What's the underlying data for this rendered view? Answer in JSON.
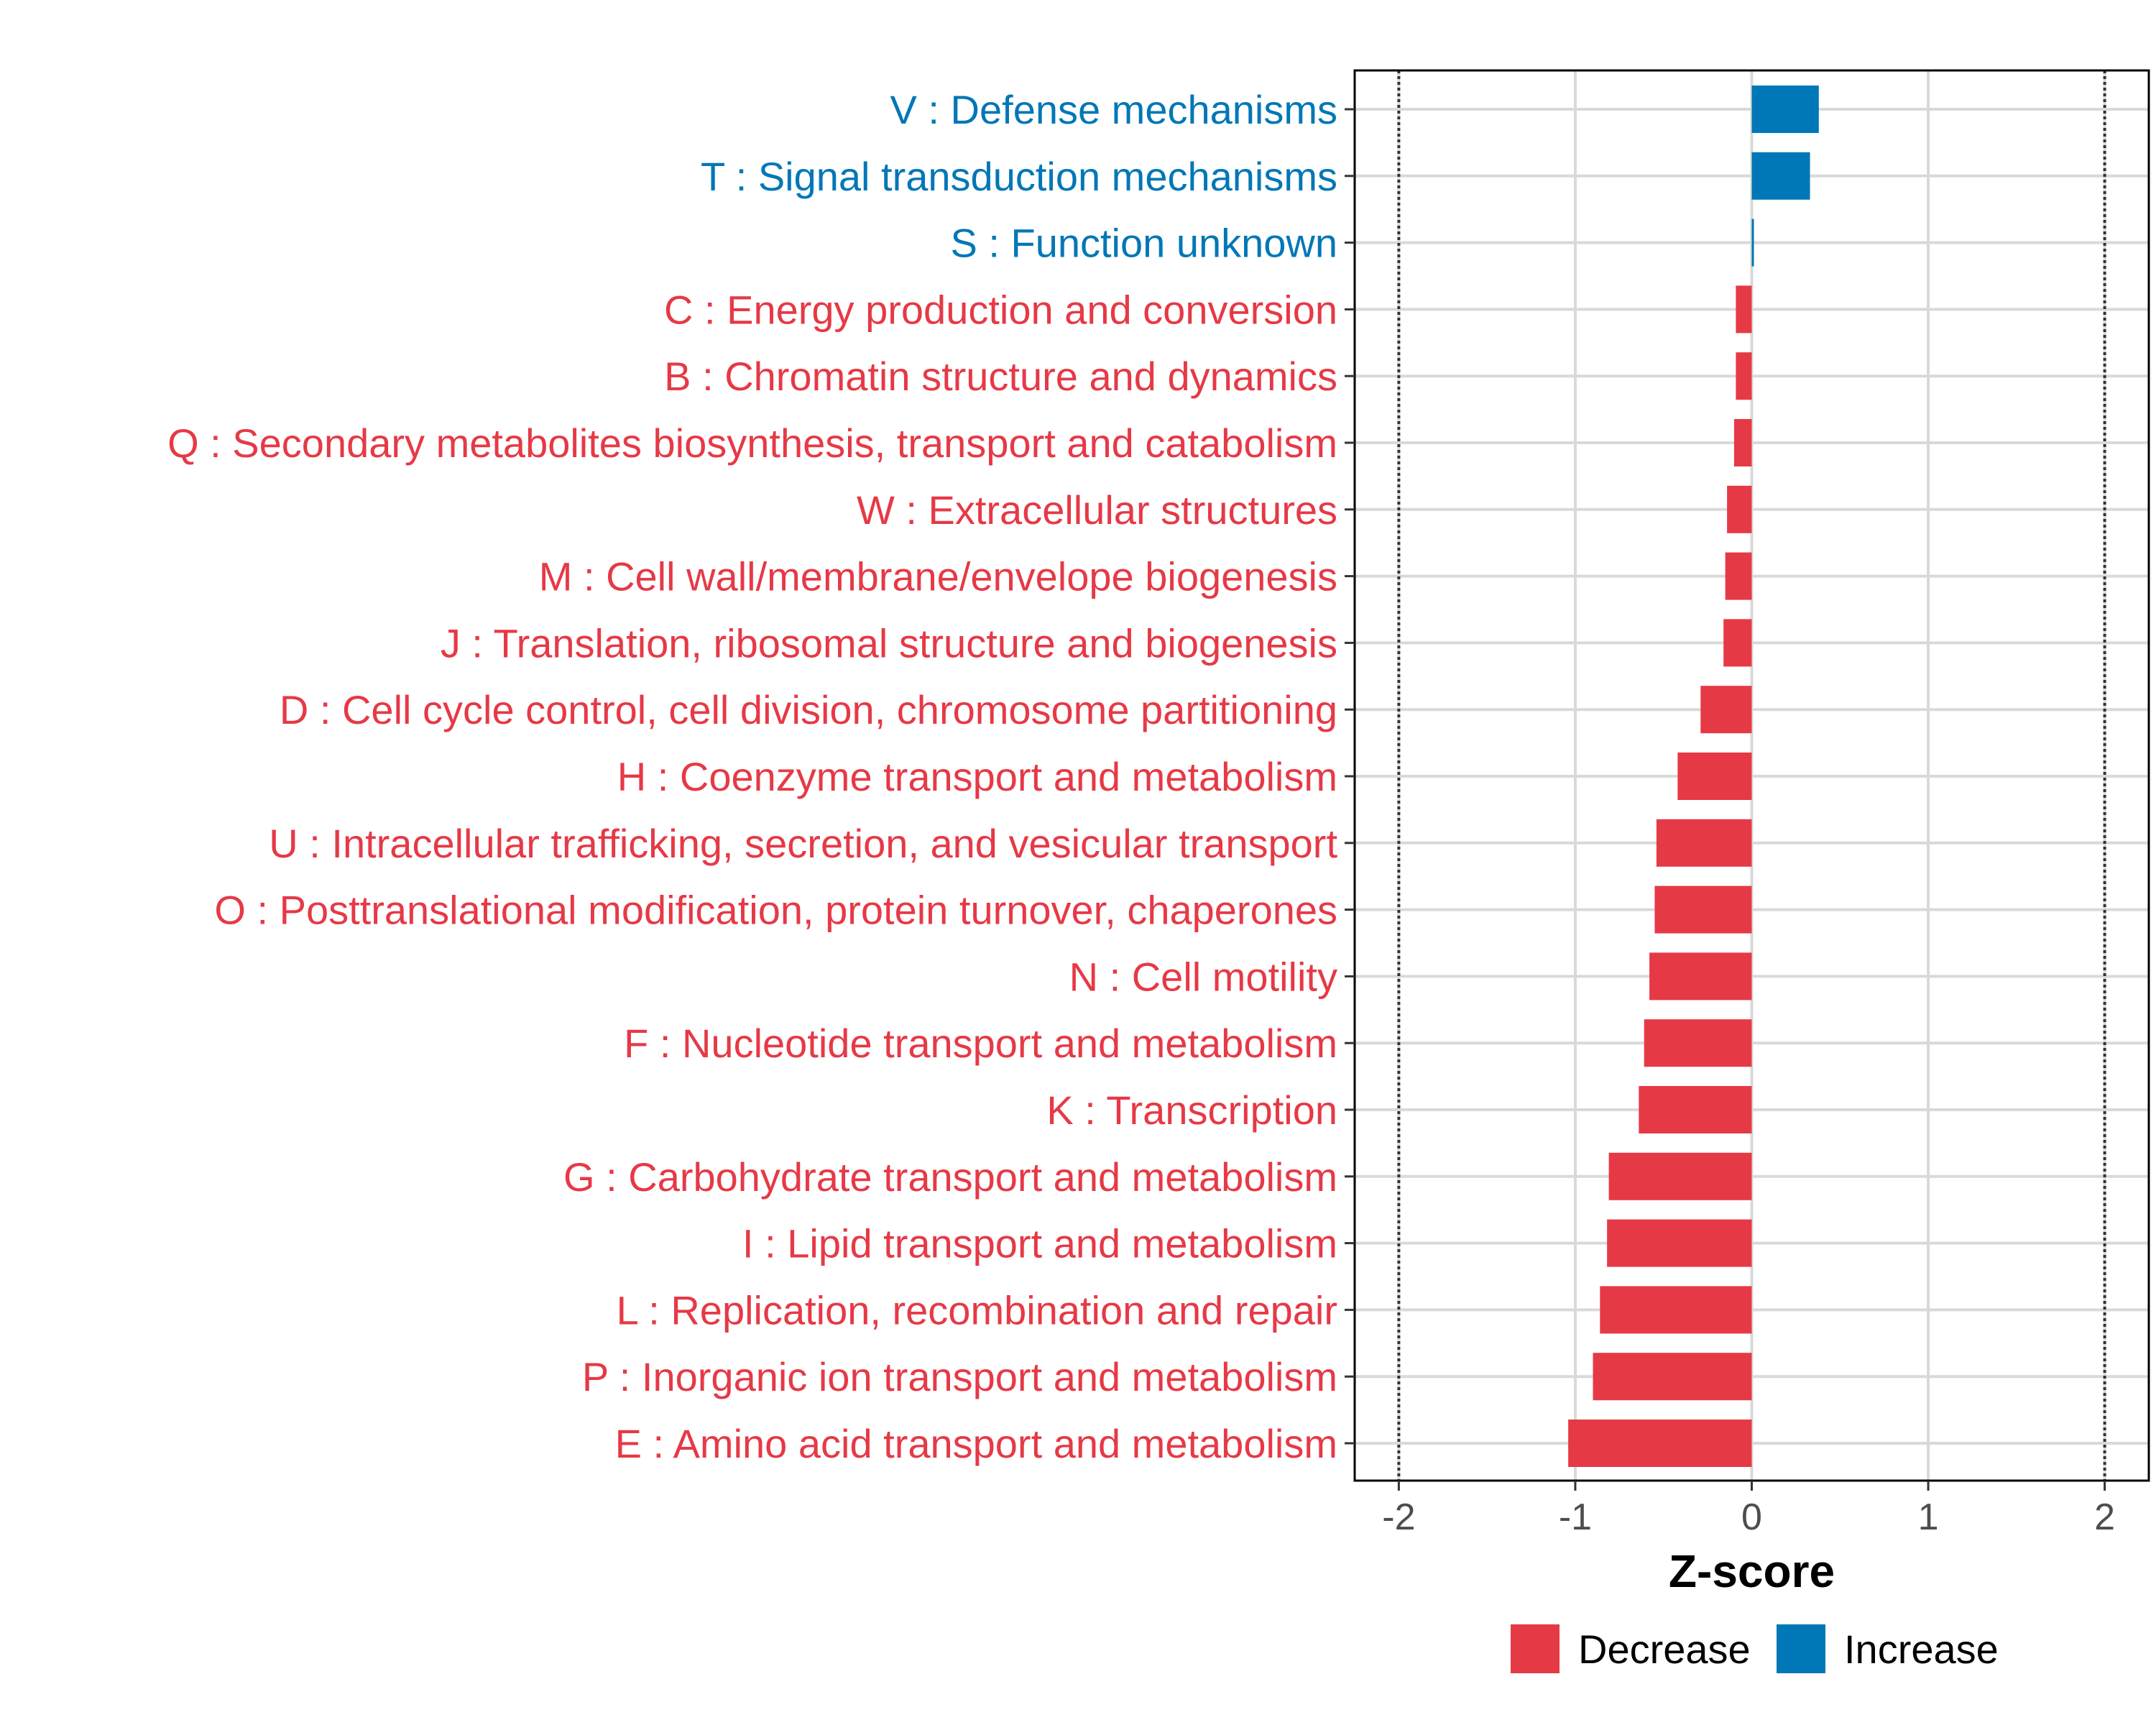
{
  "chart_data": {
    "type": "bar",
    "orientation": "horizontal",
    "title": "",
    "xlabel": "Z-score",
    "ylabel": "",
    "xlim": [
      -2.25,
      2.25
    ],
    "xticks": [
      -2,
      -1,
      0,
      1,
      2
    ],
    "xtick_labels": [
      "-2",
      "-1",
      "0",
      "1",
      "2"
    ],
    "reference_lines": [
      -2,
      2
    ],
    "grid": true,
    "legend_position": "bottom",
    "colors": {
      "Decrease": "#E63946",
      "Increase": "#0077B6"
    },
    "legend": [
      {
        "name": "Decrease",
        "color": "#E63946"
      },
      {
        "name": "Increase",
        "color": "#0077B6"
      }
    ],
    "categories": [
      "V : Defense mechanisms",
      "T : Signal transduction mechanisms",
      "S : Function unknown",
      "C : Energy production and conversion",
      "B : Chromatin structure and dynamics",
      "Q : Secondary metabolites biosynthesis, transport and catabolism",
      "W : Extracellular structures",
      "M : Cell wall/membrane/envelope biogenesis",
      "J : Translation, ribosomal structure and biogenesis",
      "D : Cell cycle control, cell division, chromosome partitioning",
      "H : Coenzyme transport and metabolism",
      "U : Intracellular trafficking, secretion, and vesicular transport",
      "O : Posttranslational modification, protein turnover, chaperones",
      "N : Cell motility",
      "F : Nucleotide transport and metabolism",
      "K : Transcription",
      "G : Carbohydrate transport and metabolism",
      "I : Lipid transport and metabolism",
      "L : Replication, recombination and repair",
      "P : Inorganic ion transport and metabolism",
      "E : Amino acid transport and metabolism"
    ],
    "values": [
      0.38,
      0.33,
      0.01,
      -0.09,
      -0.09,
      -0.1,
      -0.14,
      -0.15,
      -0.16,
      -0.29,
      -0.42,
      -0.54,
      -0.55,
      -0.58,
      -0.61,
      -0.64,
      -0.81,
      -0.82,
      -0.86,
      -0.9,
      -1.04
    ],
    "groups": [
      "Increase",
      "Increase",
      "Increase",
      "Decrease",
      "Decrease",
      "Decrease",
      "Decrease",
      "Decrease",
      "Decrease",
      "Decrease",
      "Decrease",
      "Decrease",
      "Decrease",
      "Decrease",
      "Decrease",
      "Decrease",
      "Decrease",
      "Decrease",
      "Decrease",
      "Decrease",
      "Decrease"
    ]
  }
}
